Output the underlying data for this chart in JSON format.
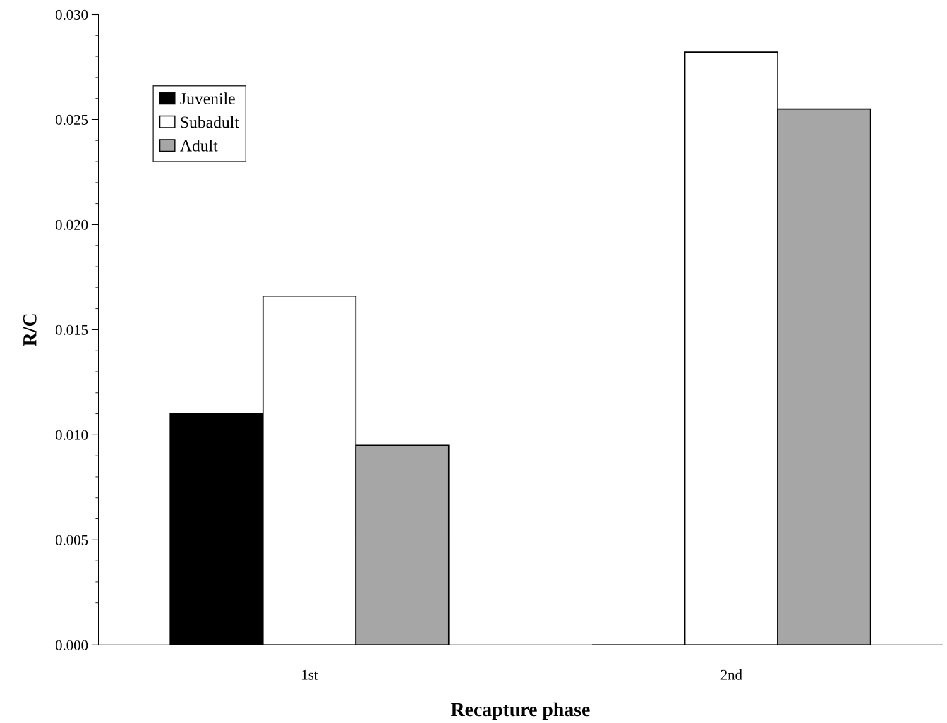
{
  "chart_data": {
    "type": "bar",
    "xlabel": "Recapture phase",
    "ylabel": "R/C",
    "categories": [
      "1st",
      "2nd"
    ],
    "series": [
      {
        "name": "Juvenile",
        "color": "#000000",
        "values": [
          0.011,
          0
        ]
      },
      {
        "name": "Subadult",
        "color": "#ffffff",
        "values": [
          0.0166,
          0.0282
        ]
      },
      {
        "name": "Adult",
        "color": "#a6a6a6",
        "values": [
          0.0095,
          0.0255
        ]
      }
    ],
    "ylim": [
      0,
      0.03
    ],
    "yticks": [
      {
        "value": 0,
        "label": "0.000"
      },
      {
        "value": 0.005,
        "label": "0.005"
      },
      {
        "value": 0.01,
        "label": "0.010"
      },
      {
        "value": 0.015,
        "label": "0.015"
      },
      {
        "value": 0.02,
        "label": "0.020"
      },
      {
        "value": 0.025,
        "label": "0.025"
      },
      {
        "value": 0.03,
        "label": "0.030"
      }
    ],
    "grid": false,
    "legend": "top left"
  }
}
